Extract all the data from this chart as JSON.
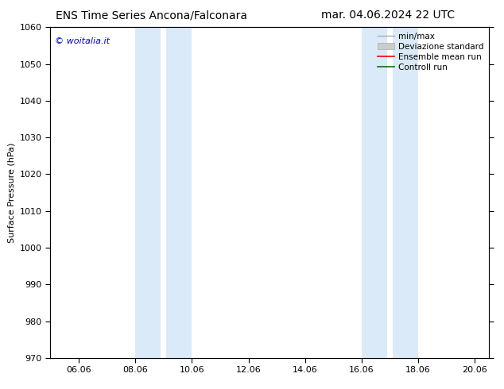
{
  "title_left": "ENS Time Series Ancona/Falconara",
  "title_right": "mar. 04.06.2024 22 UTC",
  "ylabel": "Surface Pressure (hPa)",
  "ylim": [
    970,
    1060
  ],
  "yticks": [
    970,
    980,
    990,
    1000,
    1010,
    1020,
    1030,
    1040,
    1050,
    1060
  ],
  "xtick_labels": [
    "06.06",
    "08.06",
    "10.06",
    "12.06",
    "14.06",
    "16.06",
    "18.06",
    "20.06"
  ],
  "xtick_positions": [
    1,
    3,
    5,
    7,
    9,
    11,
    13,
    15
  ],
  "xlim": [
    0,
    15.5
  ],
  "night_bands": [
    {
      "start": 3.0,
      "end": 3.9
    },
    {
      "start": 4.1,
      "end": 5.0
    },
    {
      "start": 11.0,
      "end": 11.9
    },
    {
      "start": 12.1,
      "end": 13.0
    }
  ],
  "night_color": "#daeaf8",
  "background_color": "#ffffff",
  "watermark_text": "© woitalia.it",
  "watermark_color": "#0000cc",
  "legend_entries": [
    {
      "label": "min/max",
      "color": "#aaaaaa",
      "lw": 1.0,
      "type": "line"
    },
    {
      "label": "Deviazione standard",
      "color": "#cccccc",
      "type": "band"
    },
    {
      "label": "Ensemble mean run",
      "color": "#ff0000",
      "lw": 1.2,
      "type": "line"
    },
    {
      "label": "Controll run",
      "color": "#007700",
      "lw": 1.2,
      "type": "line"
    }
  ],
  "title_fontsize": 10,
  "axis_label_fontsize": 8,
  "tick_fontsize": 8,
  "legend_fontsize": 7.5,
  "watermark_fontsize": 8
}
